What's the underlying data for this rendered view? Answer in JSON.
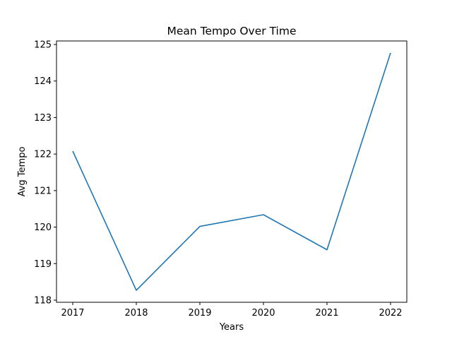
{
  "chart_data": {
    "type": "line",
    "title": "Mean Tempo Over Time",
    "xlabel": "Years",
    "ylabel": "Avg Tempo",
    "x": [
      "2017",
      "2018",
      "2019",
      "2020",
      "2021",
      "2022"
    ],
    "series": [
      {
        "values": [
          122.08,
          118.27,
          120.02,
          120.34,
          119.38,
          124.77
        ],
        "color": "#1f77b4"
      }
    ],
    "ylim": [
      118,
      125
    ],
    "yticks": [
      118,
      119,
      120,
      121,
      122,
      123,
      124,
      125
    ],
    "grid": false
  }
}
